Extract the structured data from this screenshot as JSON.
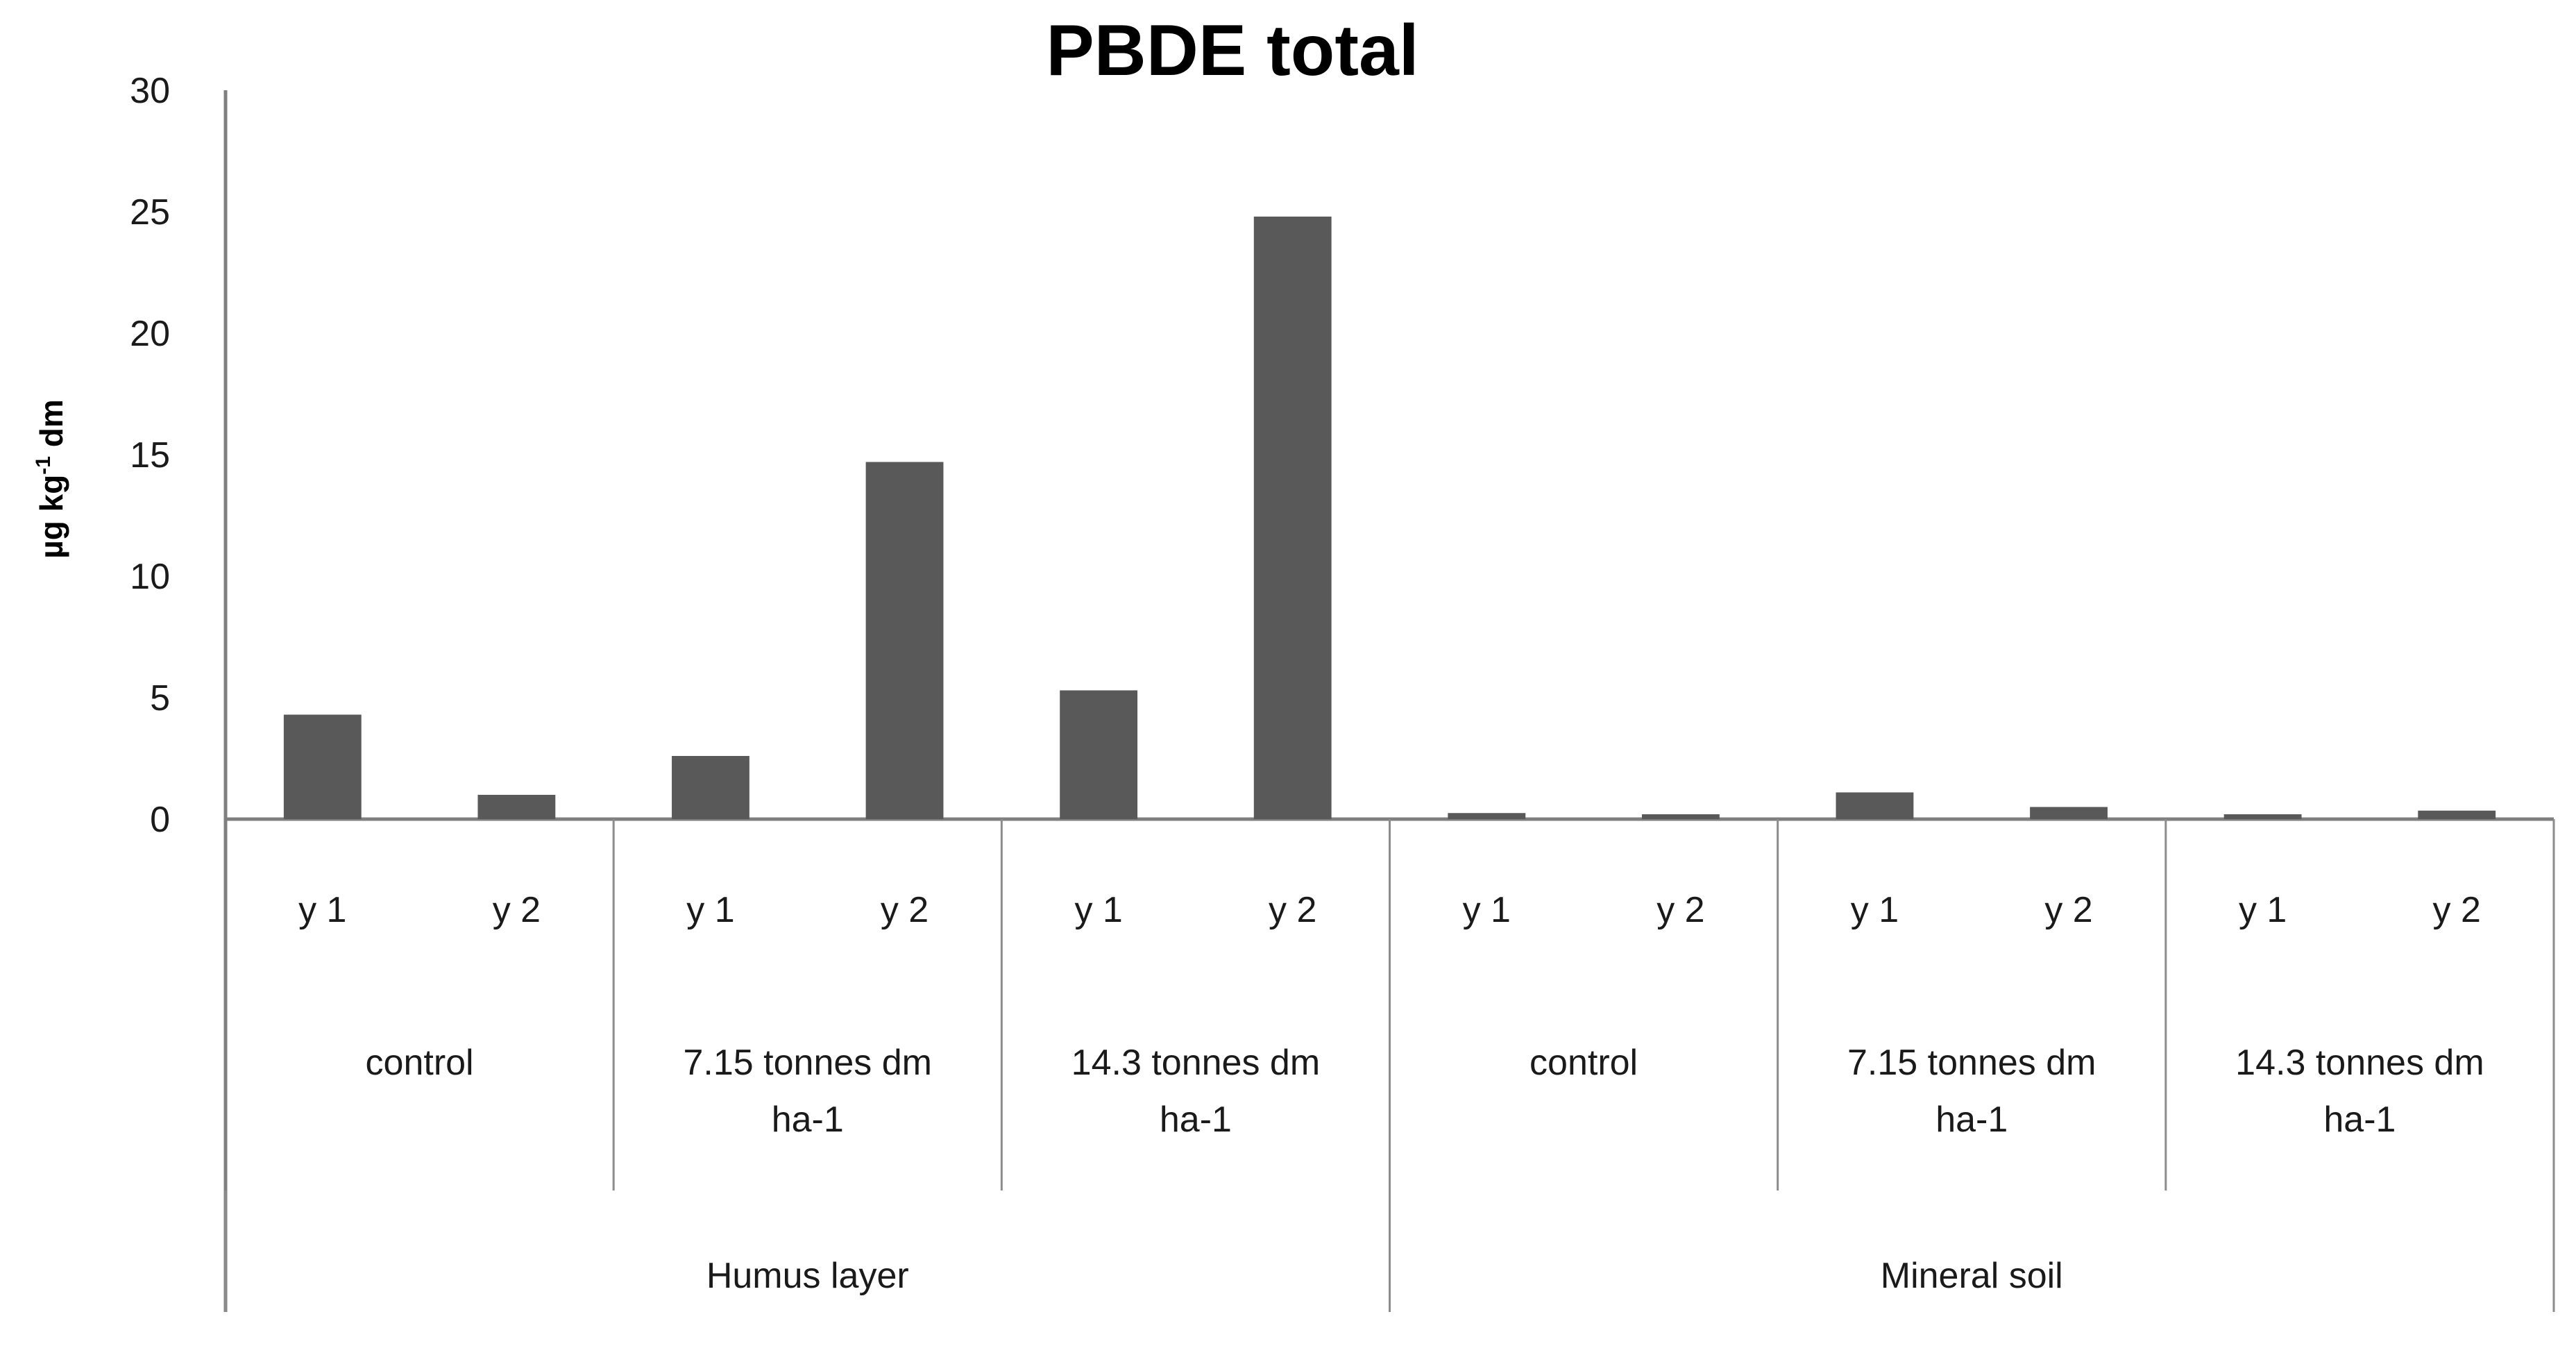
{
  "chart_data": {
    "type": "bar",
    "title": "PBDE total",
    "ylabel": {
      "main": "µg kg",
      "sup": "-1",
      "suffix": " dm"
    },
    "ylim": [
      0,
      30
    ],
    "yticks": [
      0,
      5,
      10,
      15,
      20,
      25,
      30
    ],
    "grid": false,
    "categories": [
      "y 1",
      "y 2",
      "y 1",
      "y 2",
      "y 1",
      "y 2",
      "y 1",
      "y 2",
      "y 1",
      "y 2",
      "y 1",
      "y 2"
    ],
    "values": [
      4.3,
      1.0,
      2.6,
      14.7,
      5.3,
      24.8,
      0.25,
      0.2,
      1.1,
      0.5,
      0.2,
      0.35
    ],
    "groups": [
      {
        "lines": [
          "control"
        ]
      },
      {
        "lines": [
          "7.15 tonnes dm",
          "ha-1"
        ]
      },
      {
        "lines": [
          "14.3 tonnes dm",
          "ha-1"
        ]
      },
      {
        "lines": [
          "control"
        ]
      },
      {
        "lines": [
          "7.15 tonnes dm",
          "ha-1"
        ]
      },
      {
        "lines": [
          "14.3 tonnes dm",
          "ha-1"
        ]
      }
    ],
    "supergroups": [
      "Humus layer",
      "Mineral soil"
    ]
  }
}
